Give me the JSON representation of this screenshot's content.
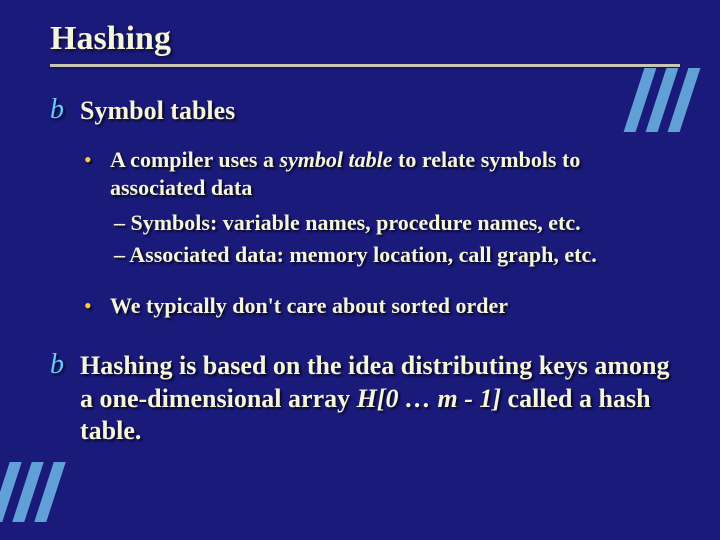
{
  "title": "Hashing",
  "colors": {
    "background": "#1a1a7a",
    "text": "#f5f5dc",
    "level1_bullet": "#66ccff",
    "level2_bullet": "#ffcc33",
    "underline": "#c8c8b0",
    "deco_bar": "#6fb8e8"
  },
  "typography": {
    "title_fontsize": 34,
    "level1_fontsize": 26,
    "level2_fontsize": 22,
    "level3_fontsize": 22,
    "font_family": "Times New Roman"
  },
  "bullets": {
    "level1_glyph": "b",
    "level2_glyph": "•",
    "level3_glyph": "–"
  },
  "items": [
    {
      "text": "Symbol tables",
      "children": [
        {
          "pre": "A compiler uses a ",
          "em": "symbol table",
          "post": " to relate symbols to associated data",
          "children": [
            {
              "text": "Symbols: variable names, procedure names, etc."
            },
            {
              "text": "Associated data: memory location, call graph, etc."
            }
          ]
        },
        {
          "text": "We typically don't care about sorted order"
        }
      ]
    },
    {
      "parts": {
        "p1": "Hashing",
        "p2": " is based on the idea distributing keys among a one-dimensional array ",
        "p3": "H[0 … m - 1]",
        "p4": " called a ",
        "p5": "hash table",
        "p6": "."
      }
    }
  ]
}
